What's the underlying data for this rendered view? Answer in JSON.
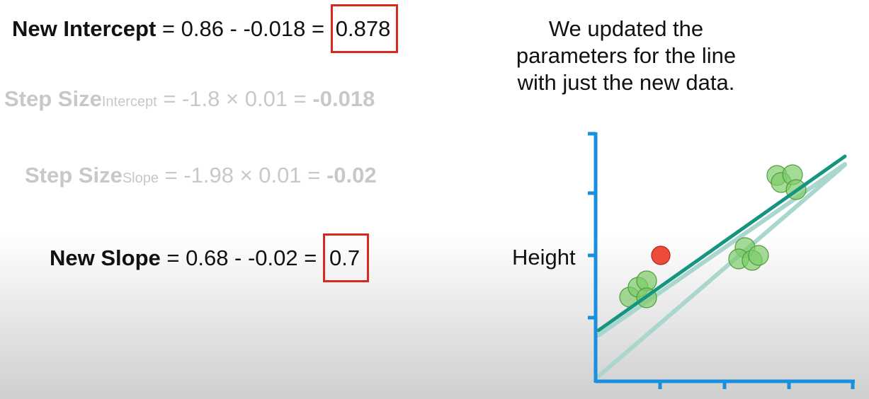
{
  "new_intercept": {
    "label": "New Intercept",
    "equation": " = 0.86 - -0.018 = ",
    "result": "0.878"
  },
  "step_size_intercept": {
    "label": "Step Size",
    "subscript": "Intercept",
    "equation": " = -1.8 × 0.01 = ",
    "result": "-0.018"
  },
  "step_size_slope": {
    "label": "Step Size",
    "subscript": "Slope",
    "equation": " = -1.98 × 0.01 = ",
    "result": "-0.02"
  },
  "new_slope": {
    "label": "New Slope",
    "equation": " = 0.68 - -0.02 = ",
    "result": "0.7"
  },
  "caption": {
    "line1": "We updated the",
    "line2": "parameters for the line",
    "line3": "with just the new data."
  },
  "plot": {
    "ylabel": "Height",
    "colors": {
      "axis": "#1a8fe0",
      "new_line": "#15957f",
      "old_line": "#a9d6cd",
      "new_point": "#ee4b3a",
      "old_points": "#7dcc6a",
      "highlight_box": "#d62a1f"
    }
  }
}
